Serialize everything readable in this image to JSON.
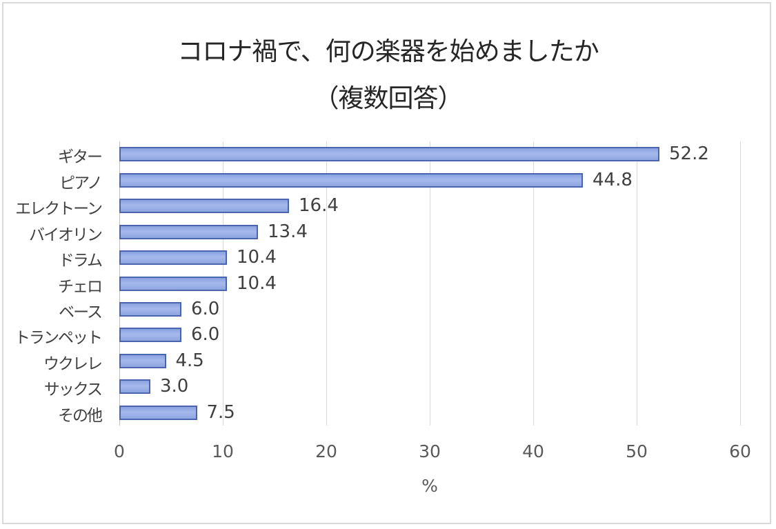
{
  "chart_data": {
    "type": "bar",
    "orientation": "horizontal",
    "title": "コロナ禍で、何の楽器を始めましたか",
    "subtitle": "（複数回答）",
    "categories": [
      "ギター",
      "ピアノ",
      "エレクトーン",
      "バイオリン",
      "ドラム",
      "チェロ",
      "ベース",
      "トランペット",
      "ウクレレ",
      "サックス",
      "その他"
    ],
    "values": [
      52.2,
      44.8,
      16.4,
      13.4,
      10.4,
      10.4,
      6.0,
      6.0,
      4.5,
      3.0,
      7.5
    ],
    "value_labels": [
      "52.2",
      "44.8",
      "16.4",
      "13.4",
      "10.4",
      "10.4",
      "6.0",
      "6.0",
      "4.5",
      "3.0",
      "7.5"
    ],
    "xlabel": "%",
    "ylabel": "",
    "xlim": [
      0,
      60
    ],
    "xticks": [
      "0",
      "10",
      "20",
      "30",
      "40",
      "50",
      "60"
    ],
    "grid": "vertical",
    "legend": "none",
    "colors": {
      "bar_fill": "#a6b9ec",
      "bar_border": "#4a64b0",
      "grid": "#d9d9d9",
      "frame": "#d9d9d9"
    }
  }
}
